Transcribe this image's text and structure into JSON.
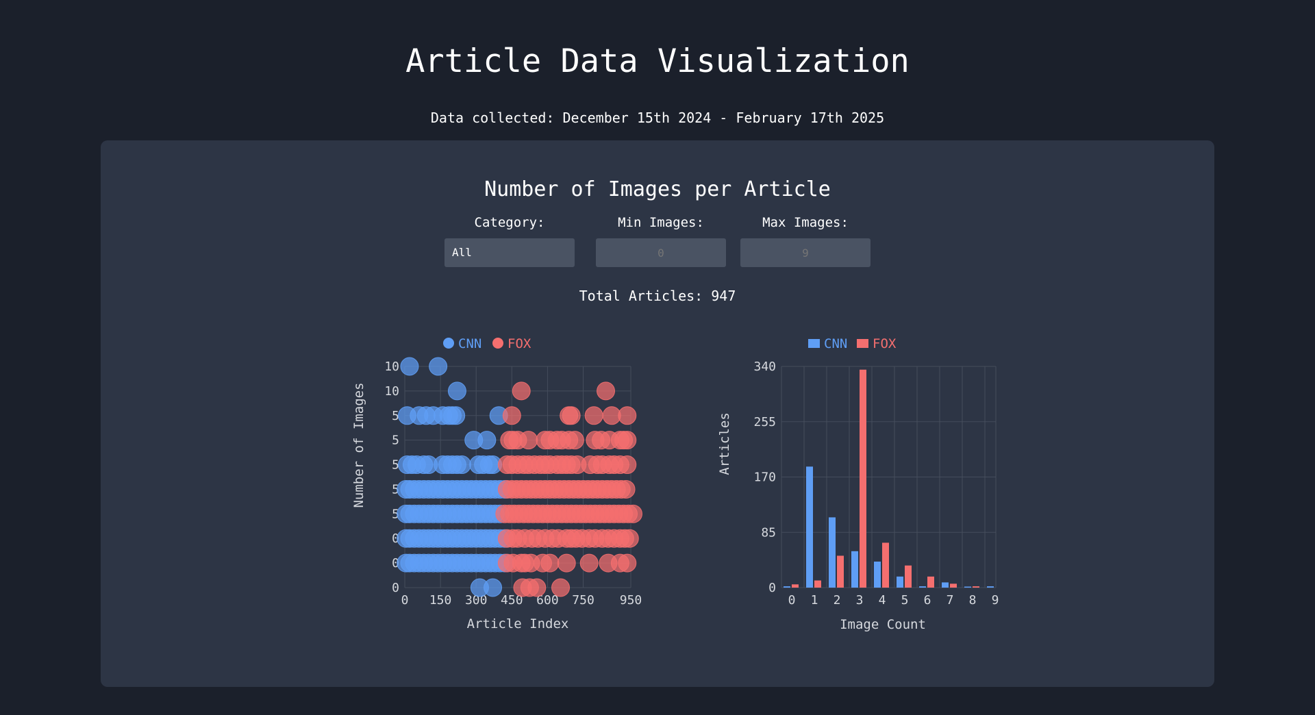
{
  "page": {
    "title": "Article Data Visualization",
    "subtitle": "Data collected: December 15th 2024 - February 17th 2025"
  },
  "panel": {
    "title": "Number of Images per Article",
    "filters": {
      "category_label": "Category:",
      "category_value": "All",
      "min_label": "Min Images:",
      "min_placeholder": "0",
      "max_label": "Max Images:",
      "max_placeholder": "9"
    },
    "total_text": "Total Articles: 947"
  },
  "colors": {
    "cnn": "#5f9ef5",
    "fox": "#f56f6f"
  },
  "chart_data": [
    {
      "type": "scatter",
      "xlabel": "Article Index",
      "ylabel": "Number of Images",
      "x_ticks": [
        "0",
        "150",
        "300",
        "450",
        "600",
        "750",
        "950"
      ],
      "y_tick_labels": [
        "0",
        "0",
        "0",
        "5",
        "5",
        "5",
        "5",
        "5",
        "10",
        "10"
      ],
      "legend": [
        "CNN",
        "FOX"
      ],
      "legend_placement": "top",
      "grid": true,
      "series": [
        {
          "name": "CNN",
          "points": [
            [
              20,
              9
            ],
            [
              140,
              9
            ],
            [
              220,
              8
            ],
            [
              10,
              7
            ],
            [
              60,
              7
            ],
            [
              90,
              7
            ],
            [
              120,
              7
            ],
            [
              160,
              7
            ],
            [
              185,
              7
            ],
            [
              200,
              7
            ],
            [
              215,
              7
            ],
            [
              395,
              7
            ],
            [
              290,
              6
            ],
            [
              345,
              6
            ],
            [
              10,
              5
            ],
            [
              30,
              5
            ],
            [
              50,
              5
            ],
            [
              80,
              5
            ],
            [
              100,
              5
            ],
            [
              160,
              5
            ],
            [
              180,
              5
            ],
            [
              200,
              5
            ],
            [
              220,
              5
            ],
            [
              240,
              5
            ],
            [
              310,
              5
            ],
            [
              330,
              5
            ],
            [
              355,
              5
            ],
            [
              370,
              5
            ],
            [
              5,
              4
            ],
            [
              20,
              4
            ],
            [
              40,
              4
            ],
            [
              60,
              4
            ],
            [
              80,
              4
            ],
            [
              100,
              4
            ],
            [
              120,
              4
            ],
            [
              140,
              4
            ],
            [
              160,
              4
            ],
            [
              180,
              4
            ],
            [
              200,
              4
            ],
            [
              220,
              4
            ],
            [
              240,
              4
            ],
            [
              260,
              4
            ],
            [
              280,
              4
            ],
            [
              300,
              4
            ],
            [
              320,
              4
            ],
            [
              340,
              4
            ],
            [
              360,
              4
            ],
            [
              380,
              4
            ],
            [
              400,
              4
            ],
            [
              420,
              4
            ],
            [
              5,
              3
            ],
            [
              20,
              3
            ],
            [
              40,
              3
            ],
            [
              60,
              3
            ],
            [
              80,
              3
            ],
            [
              100,
              3
            ],
            [
              120,
              3
            ],
            [
              140,
              3
            ],
            [
              160,
              3
            ],
            [
              180,
              3
            ],
            [
              200,
              3
            ],
            [
              220,
              3
            ],
            [
              240,
              3
            ],
            [
              260,
              3
            ],
            [
              280,
              3
            ],
            [
              300,
              3
            ],
            [
              320,
              3
            ],
            [
              340,
              3
            ],
            [
              360,
              3
            ],
            [
              380,
              3
            ],
            [
              400,
              3
            ],
            [
              5,
              2
            ],
            [
              20,
              2
            ],
            [
              40,
              2
            ],
            [
              60,
              2
            ],
            [
              80,
              2
            ],
            [
              100,
              2
            ],
            [
              120,
              2
            ],
            [
              140,
              2
            ],
            [
              160,
              2
            ],
            [
              180,
              2
            ],
            [
              200,
              2
            ],
            [
              220,
              2
            ],
            [
              240,
              2
            ],
            [
              260,
              2
            ],
            [
              280,
              2
            ],
            [
              300,
              2
            ],
            [
              320,
              2
            ],
            [
              340,
              2
            ],
            [
              360,
              2
            ],
            [
              380,
              2
            ],
            [
              400,
              2
            ],
            [
              420,
              2
            ],
            [
              5,
              1
            ],
            [
              20,
              1
            ],
            [
              40,
              1
            ],
            [
              60,
              1
            ],
            [
              80,
              1
            ],
            [
              100,
              1
            ],
            [
              120,
              1
            ],
            [
              140,
              1
            ],
            [
              160,
              1
            ],
            [
              180,
              1
            ],
            [
              200,
              1
            ],
            [
              220,
              1
            ],
            [
              240,
              1
            ],
            [
              260,
              1
            ],
            [
              280,
              1
            ],
            [
              300,
              1
            ],
            [
              320,
              1
            ],
            [
              340,
              1
            ],
            [
              360,
              1
            ],
            [
              380,
              1
            ],
            [
              400,
              1
            ],
            [
              420,
              1
            ],
            [
              315,
              0
            ],
            [
              370,
              0
            ]
          ]
        },
        {
          "name": "FOX",
          "points": [
            [
              490,
              8
            ],
            [
              845,
              8
            ],
            [
              450,
              7
            ],
            [
              690,
              7
            ],
            [
              700,
              7
            ],
            [
              795,
              7
            ],
            [
              870,
              7
            ],
            [
              935,
              7
            ],
            [
              440,
              6
            ],
            [
              455,
              6
            ],
            [
              475,
              6
            ],
            [
              520,
              6
            ],
            [
              590,
              6
            ],
            [
              610,
              6
            ],
            [
              640,
              6
            ],
            [
              660,
              6
            ],
            [
              690,
              6
            ],
            [
              715,
              6
            ],
            [
              800,
              6
            ],
            [
              825,
              6
            ],
            [
              860,
              6
            ],
            [
              905,
              6
            ],
            [
              920,
              6
            ],
            [
              935,
              6
            ],
            [
              430,
              5
            ],
            [
              450,
              5
            ],
            [
              475,
              5
            ],
            [
              500,
              5
            ],
            [
              520,
              5
            ],
            [
              545,
              5
            ],
            [
              570,
              5
            ],
            [
              590,
              5
            ],
            [
              610,
              5
            ],
            [
              640,
              5
            ],
            [
              660,
              5
            ],
            [
              680,
              5
            ],
            [
              700,
              5
            ],
            [
              725,
              5
            ],
            [
              780,
              5
            ],
            [
              810,
              5
            ],
            [
              830,
              5
            ],
            [
              860,
              5
            ],
            [
              880,
              5
            ],
            [
              905,
              5
            ],
            [
              935,
              5
            ],
            [
              430,
              4
            ],
            [
              450,
              4
            ],
            [
              470,
              4
            ],
            [
              490,
              4
            ],
            [
              510,
              4
            ],
            [
              530,
              4
            ],
            [
              550,
              4
            ],
            [
              570,
              4
            ],
            [
              590,
              4
            ],
            [
              610,
              4
            ],
            [
              630,
              4
            ],
            [
              650,
              4
            ],
            [
              670,
              4
            ],
            [
              690,
              4
            ],
            [
              710,
              4
            ],
            [
              730,
              4
            ],
            [
              750,
              4
            ],
            [
              770,
              4
            ],
            [
              790,
              4
            ],
            [
              810,
              4
            ],
            [
              830,
              4
            ],
            [
              850,
              4
            ],
            [
              870,
              4
            ],
            [
              890,
              4
            ],
            [
              910,
              4
            ],
            [
              930,
              4
            ],
            [
              420,
              3
            ],
            [
              440,
              3
            ],
            [
              460,
              3
            ],
            [
              480,
              3
            ],
            [
              500,
              3
            ],
            [
              520,
              3
            ],
            [
              540,
              3
            ],
            [
              560,
              3
            ],
            [
              580,
              3
            ],
            [
              600,
              3
            ],
            [
              620,
              3
            ],
            [
              640,
              3
            ],
            [
              660,
              3
            ],
            [
              680,
              3
            ],
            [
              700,
              3
            ],
            [
              720,
              3
            ],
            [
              740,
              3
            ],
            [
              760,
              3
            ],
            [
              780,
              3
            ],
            [
              800,
              3
            ],
            [
              820,
              3
            ],
            [
              840,
              3
            ],
            [
              860,
              3
            ],
            [
              880,
              3
            ],
            [
              900,
              3
            ],
            [
              920,
              3
            ],
            [
              940,
              3
            ],
            [
              960,
              3
            ],
            [
              430,
              2
            ],
            [
              455,
              2
            ],
            [
              475,
              2
            ],
            [
              505,
              2
            ],
            [
              535,
              2
            ],
            [
              560,
              2
            ],
            [
              590,
              2
            ],
            [
              620,
              2
            ],
            [
              645,
              2
            ],
            [
              680,
              2
            ],
            [
              700,
              2
            ],
            [
              720,
              2
            ],
            [
              745,
              2
            ],
            [
              775,
              2
            ],
            [
              800,
              2
            ],
            [
              830,
              2
            ],
            [
              855,
              2
            ],
            [
              880,
              2
            ],
            [
              905,
              2
            ],
            [
              925,
              2
            ],
            [
              945,
              2
            ],
            [
              430,
              1
            ],
            [
              455,
              1
            ],
            [
              490,
              1
            ],
            [
              505,
              1
            ],
            [
              530,
              1
            ],
            [
              580,
              1
            ],
            [
              610,
              1
            ],
            [
              680,
              1
            ],
            [
              775,
              1
            ],
            [
              855,
              1
            ],
            [
              905,
              1
            ],
            [
              935,
              1
            ],
            [
              495,
              0
            ],
            [
              525,
              0
            ],
            [
              555,
              0
            ],
            [
              655,
              0
            ]
          ]
        }
      ]
    },
    {
      "type": "bar",
      "xlabel": "Image Count",
      "ylabel": "Articles",
      "categories": [
        "0",
        "1",
        "2",
        "3",
        "4",
        "5",
        "6",
        "7",
        "8",
        "9"
      ],
      "y_ticks": [
        0,
        85,
        170,
        255,
        340
      ],
      "ylim": [
        0,
        340
      ],
      "legend": [
        "CNN",
        "FOX"
      ],
      "legend_placement": "top",
      "grid": true,
      "series": [
        {
          "name": "CNN",
          "values": [
            2,
            186,
            108,
            56,
            40,
            17,
            2,
            8,
            1,
            2
          ]
        },
        {
          "name": "FOX",
          "values": [
            5,
            11,
            49,
            335,
            69,
            34,
            17,
            6,
            2,
            0
          ]
        }
      ]
    }
  ]
}
